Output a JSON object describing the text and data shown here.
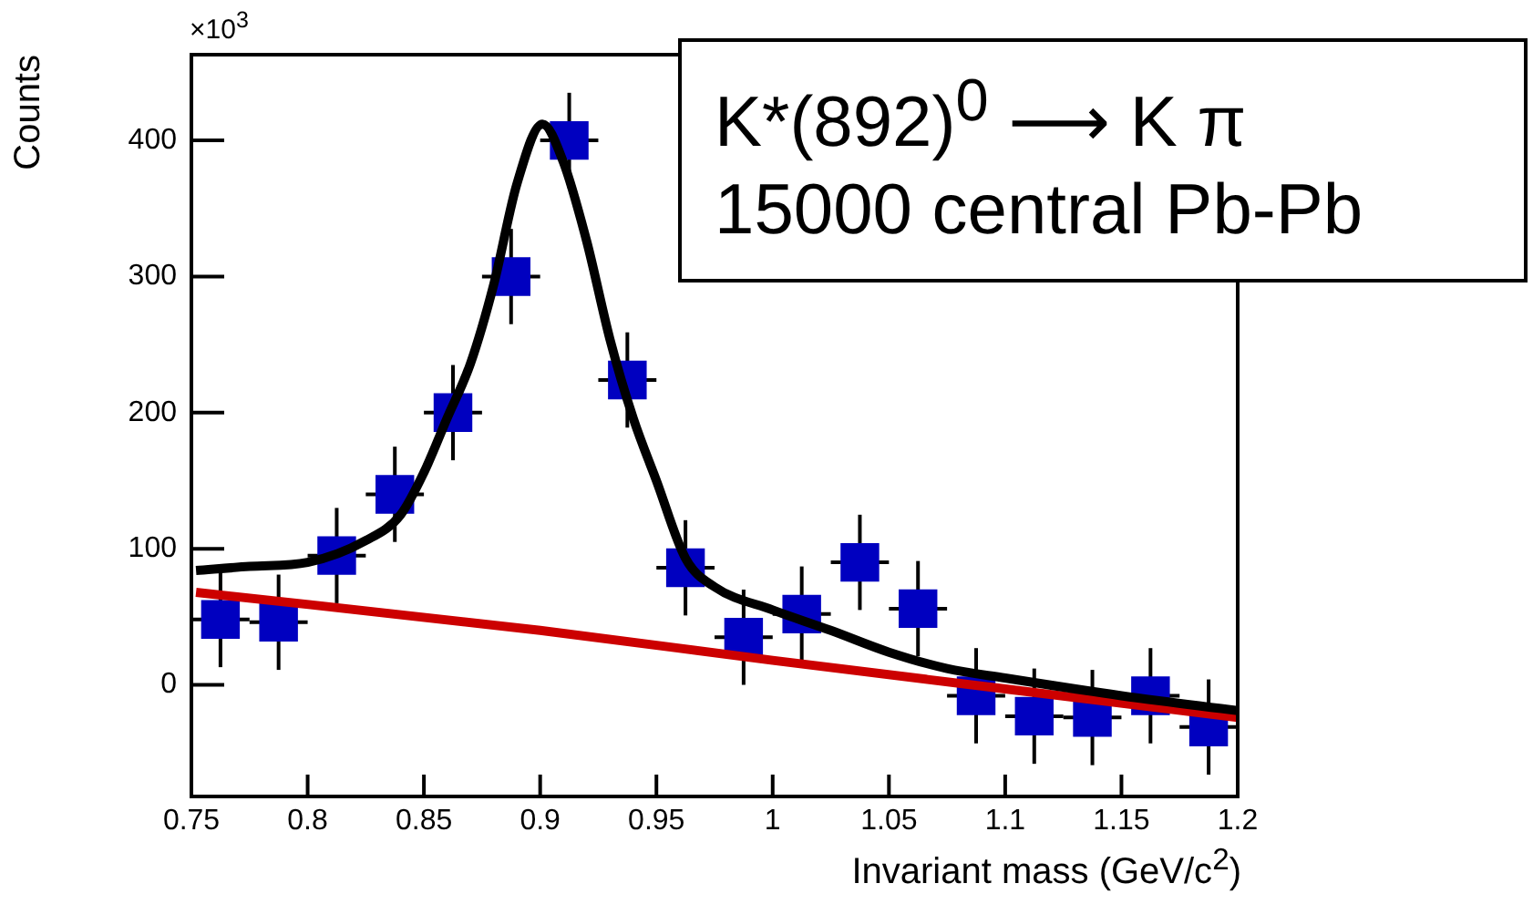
{
  "chart_data": {
    "type": "scatter",
    "xlabel": "Invariant mass (GeV/c$^{2}$)",
    "ylabel": "Counts",
    "annotations": [
      "×10$^{3}$",
      "K*(892)$^{0}$ ⟶ K π",
      "15000 central Pb-Pb"
    ],
    "xlim": [
      0.75,
      1.2
    ],
    "xticks": [
      0.75,
      0.8,
      0.85,
      0.9,
      0.95,
      1,
      1.05,
      1.1,
      1.15,
      1.2
    ],
    "ylim": [
      -82,
      463
    ],
    "yticks": [
      0,
      100,
      200,
      300,
      400
    ],
    "grid": false,
    "legend": false,
    "line_style": "solid",
    "series": [
      {
        "color": "#0000c0",
        "marker": "square",
        "x": [
          0.7625,
          0.7875,
          0.8125,
          0.8375,
          0.8625,
          0.8875,
          0.9125,
          0.9375,
          0.9625,
          0.9875,
          1.0125,
          1.0375,
          1.0625,
          1.0875,
          1.1125,
          1.1375,
          1.1625,
          1.1875
        ],
        "values": [
          48,
          46,
          95,
          140,
          200,
          300,
          400,
          224,
          86,
          35,
          52,
          90,
          56,
          -8,
          -23,
          -24,
          -8,
          -31
        ],
        "errors": [
          35,
          35,
          35,
          35,
          35,
          35,
          35,
          35,
          35,
          35,
          35,
          35,
          35,
          35,
          35,
          35,
          35,
          35
        ],
        "xerrors": [
          0.0125,
          0.0125,
          0.0125,
          0.0125,
          0.0125,
          0.0125,
          0.0125,
          0.0125,
          0.0125,
          0.0125,
          0.0125,
          0.0125,
          0.0125,
          0.0125,
          0.0125,
          0.0125,
          0.0125,
          0.0125
        ]
      },
      {
        "type": "line",
        "color": "#000000",
        "marker": "none",
        "x": [
          0.752,
          0.775,
          0.8,
          0.825,
          0.84,
          0.85,
          0.86,
          0.87,
          0.88,
          0.89,
          0.901,
          0.91,
          0.92,
          0.93,
          0.94,
          0.95,
          0.9625,
          0.975,
          1.0,
          1.025,
          1.05,
          1.075,
          1.1,
          1.15,
          1.2
        ],
        "values": [
          84,
          87,
          90,
          106,
          125,
          156,
          196,
          236,
          294,
          368,
          412,
          384,
          326,
          254,
          196,
          150,
          93,
          72,
          55,
          40,
          24,
          12,
          5,
          -8,
          -19
        ]
      },
      {
        "type": "line",
        "color": "#cc0000",
        "marker": "none",
        "x": [
          0.752,
          0.9,
          1.0,
          1.1,
          1.2
        ],
        "values": [
          68,
          40,
          18,
          -3,
          -24
        ]
      }
    ]
  }
}
